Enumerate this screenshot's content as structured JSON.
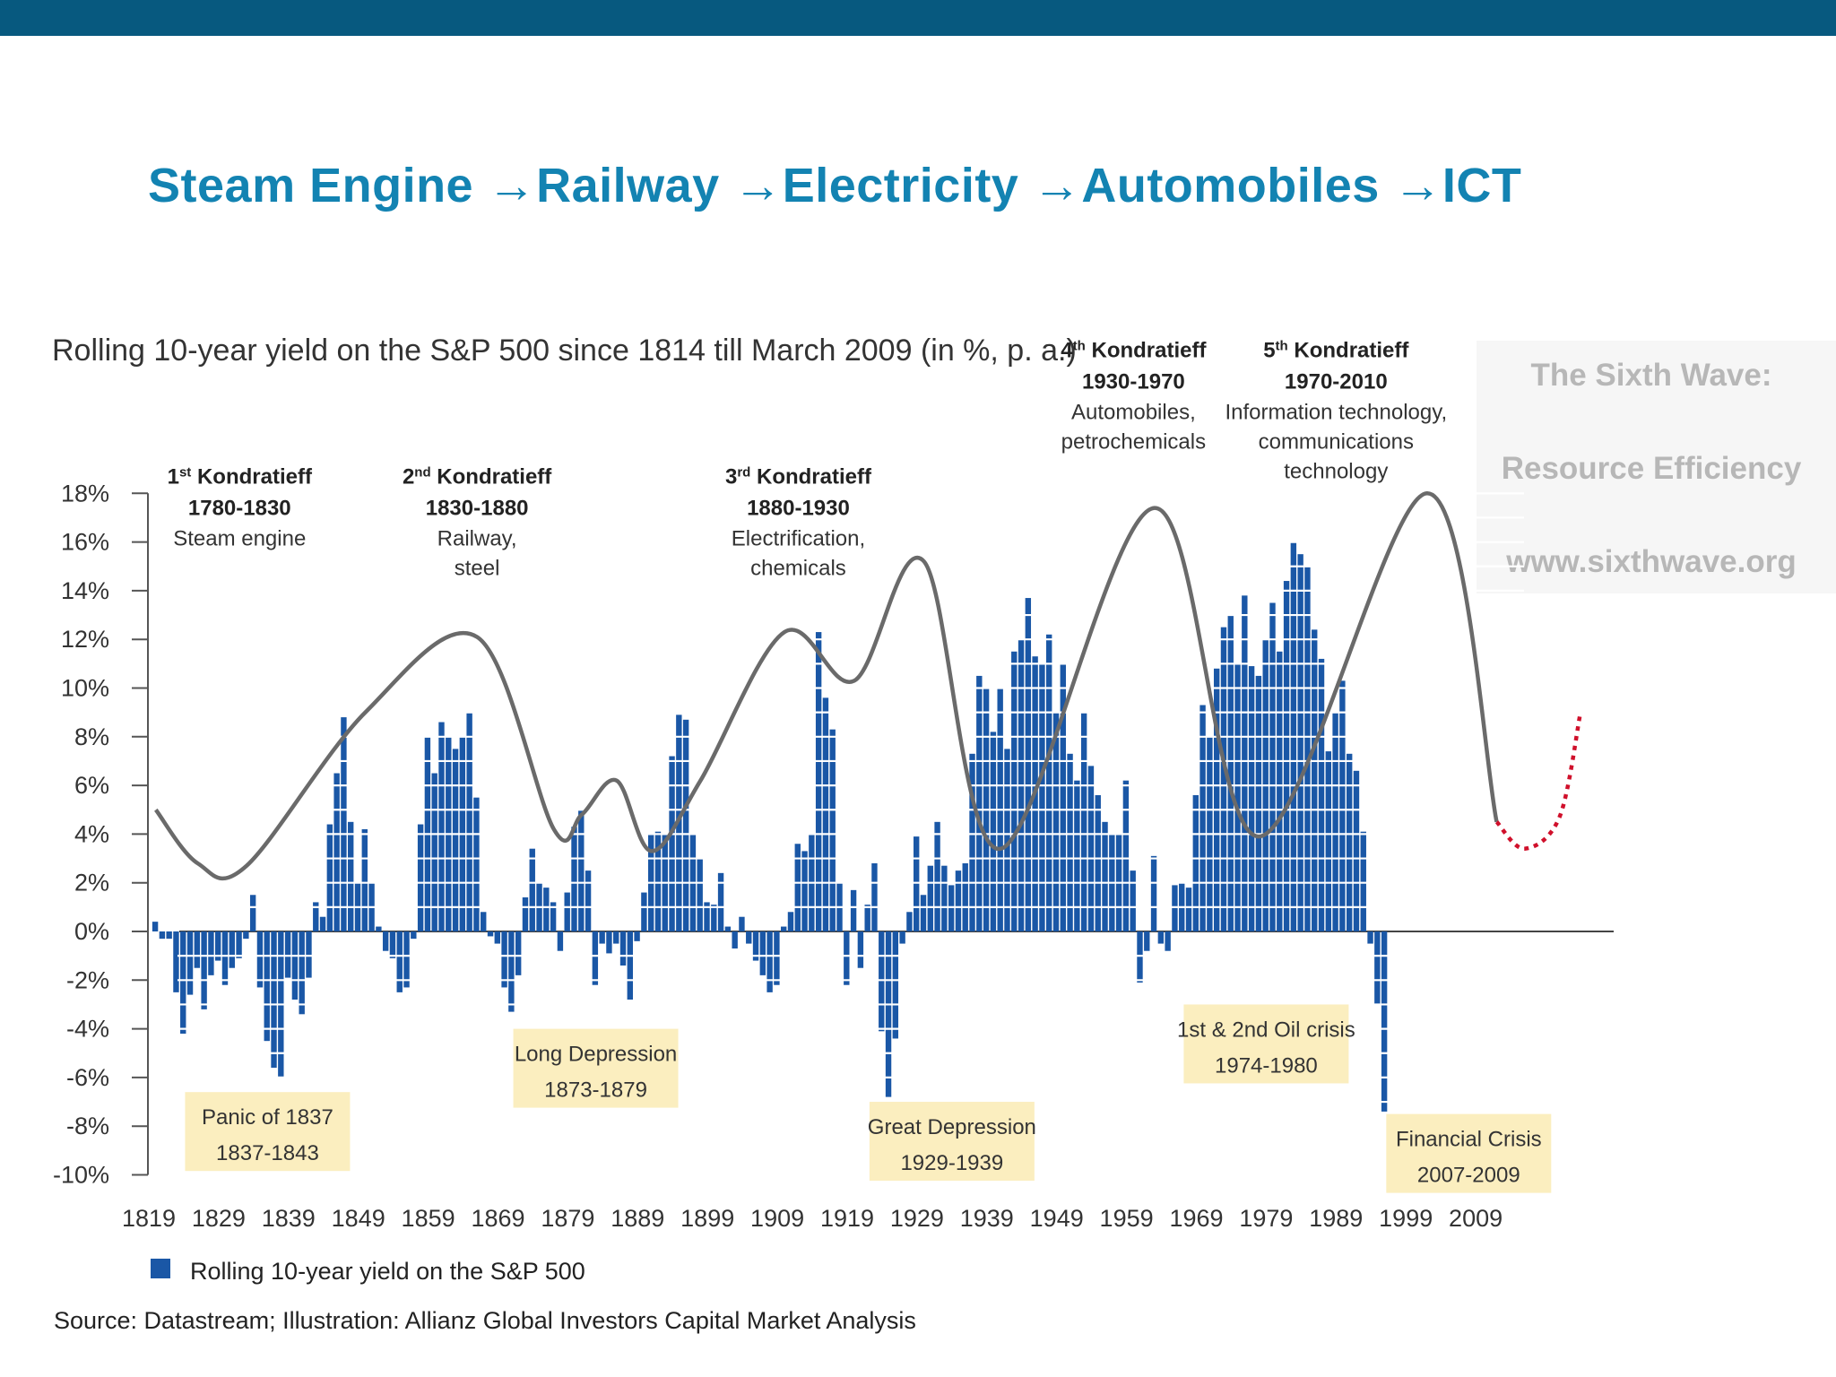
{
  "slide": {
    "title": "Steam Engine →Railway →Electricity →Automobiles →ICT"
  },
  "colors": {
    "top_bar": "#07597f",
    "title": "#1383b2",
    "bars": "#1a57a6",
    "wave": "#6a6a6a",
    "projection": "#d0102b",
    "crisis_box": "#fbeebf"
  },
  "chart_data": {
    "type": "bar",
    "title": "Rolling 10-year yield on the S&P 500 since 1814 till March 2009 (in %, p. a.)",
    "ylim": [
      -10,
      18
    ],
    "y_ticks": [
      "18%",
      "16%",
      "14%",
      "12%",
      "10%",
      "8%",
      "6%",
      "4%",
      "2%",
      "0%",
      "-2%",
      "-4%",
      "-6%",
      "-8%",
      "-10%"
    ],
    "y_tick_values": [
      18,
      16,
      14,
      12,
      10,
      8,
      6,
      4,
      2,
      0,
      -2,
      -4,
      -6,
      -8,
      -10
    ],
    "x_ticks": [
      "1819",
      "1829",
      "1839",
      "1849",
      "1859",
      "1869",
      "1879",
      "1889",
      "1899",
      "1909",
      "1919",
      "1929",
      "1939",
      "1949",
      "1959",
      "1969",
      "1979",
      "1989",
      "1999",
      "2009"
    ],
    "x_range": [
      1814,
      2009
    ],
    "series": [
      {
        "name": "Rolling 10-year yield on the S&P 500",
        "start_year": 1820,
        "values": [
          0.4,
          -0.3,
          -0.3,
          -2.5,
          -4.2,
          -2.6,
          -1.5,
          -3.2,
          -1.8,
          -1.2,
          -2.2,
          -1.5,
          -1.1,
          -0.3,
          1.5,
          -2.3,
          -4.5,
          -5.6,
          -6.0,
          -1.9,
          -2.8,
          -3.4,
          -1.9,
          1.2,
          0.6,
          4.4,
          6.5,
          8.8,
          4.5,
          2.0,
          4.2,
          2.0,
          0.2,
          -0.8,
          -1.1,
          -2.5,
          -2.3,
          -0.3,
          4.4,
          8.0,
          6.5,
          8.6,
          8.0,
          7.5,
          8.0,
          9.0,
          5.5,
          0.8,
          -0.2,
          -0.5,
          -2.3,
          -3.3,
          -1.8,
          1.4,
          3.4,
          2.0,
          1.8,
          1.2,
          -0.8,
          1.6,
          4.3,
          5.0,
          2.5,
          -2.2,
          -0.5,
          -0.9,
          -0.5,
          -1.4,
          -2.8,
          -0.4,
          1.6,
          4.0,
          4.1,
          4.0,
          7.2,
          8.9,
          8.7,
          4.0,
          3.0,
          1.2,
          1.1,
          2.4,
          0.2,
          -0.7,
          0.6,
          -0.5,
          -1.2,
          -1.8,
          -2.5,
          -2.2,
          0.2,
          0.8,
          3.6,
          3.3,
          4.0,
          12.3,
          9.6,
          8.3,
          2.0,
          -2.2,
          1.7,
          -1.5,
          1.1,
          2.8,
          -4.1,
          -6.8,
          -4.4,
          -0.5,
          0.8,
          3.9,
          1.5,
          2.7,
          4.5,
          2.7,
          1.9,
          2.5,
          2.8,
          7.3,
          10.5,
          10.0,
          8.2,
          10.0,
          7.5,
          11.5,
          12.0,
          13.7,
          11.3,
          11.0,
          12.2,
          9.0,
          11.0,
          7.3,
          6.2,
          9.0,
          6.8,
          5.6,
          4.5,
          4.0,
          4.0,
          6.2,
          2.5,
          -2.1,
          -0.8,
          3.1,
          -0.5,
          -0.8,
          1.9,
          2.0,
          1.8,
          5.6,
          9.3,
          8.0,
          10.8,
          12.5,
          13.0,
          11.0,
          13.8,
          10.9,
          10.5,
          12.0,
          13.5,
          11.5,
          14.4,
          16.0,
          15.5,
          15.0,
          12.4,
          11.2,
          7.4,
          9.0,
          10.3,
          7.3,
          6.6,
          4.1,
          -0.5,
          -3.0,
          -7.4
        ]
      }
    ],
    "wave_curve": [
      {
        "year": 1820,
        "value": 5.0
      },
      {
        "year": 1826,
        "value": 2.8
      },
      {
        "year": 1833,
        "value": 2.7
      },
      {
        "year": 1850,
        "value": 9.0
      },
      {
        "year": 1866,
        "value": 12.1
      },
      {
        "year": 1877,
        "value": 4.2
      },
      {
        "year": 1881,
        "value": 4.8
      },
      {
        "year": 1886,
        "value": 6.2
      },
      {
        "year": 1891,
        "value": 3.3
      },
      {
        "year": 1898,
        "value": 6.2
      },
      {
        "year": 1910,
        "value": 12.3
      },
      {
        "year": 1920,
        "value": 10.3
      },
      {
        "year": 1930,
        "value": 15.2
      },
      {
        "year": 1941,
        "value": 3.4
      },
      {
        "year": 1963,
        "value": 17.4
      },
      {
        "year": 1978,
        "value": 3.9
      },
      {
        "year": 2002,
        "value": 18.0
      },
      {
        "year": 2012,
        "value": 4.5
      }
    ],
    "projection_curve": [
      {
        "year": 2012,
        "value": 4.5
      },
      {
        "year": 2016,
        "value": 3.4
      },
      {
        "year": 2021,
        "value": 4.7
      },
      {
        "year": 2024,
        "value": 9.0
      }
    ],
    "waves": [
      {
        "name": "1st Kondratieff",
        "ordinal": "1",
        "suffix": "st",
        "base": " Kondratieff",
        "period": "1780-1830",
        "theme": [
          "Steam engine"
        ],
        "center_year": 1832,
        "top_value": 18.4
      },
      {
        "name": "2nd Kondratieff",
        "ordinal": "2",
        "suffix": "nd",
        "base": " Kondratieff",
        "period": "1830-1880",
        "theme": [
          "Railway,",
          "steel"
        ],
        "center_year": 1866,
        "top_value": 18.4
      },
      {
        "name": "3rd Kondratieff",
        "ordinal": "3",
        "suffix": "rd",
        "base": " Kondratieff",
        "period": "1880-1930",
        "theme": [
          "Electrification,",
          "chemicals"
        ],
        "center_year": 1912,
        "top_value": 18.4
      },
      {
        "name": "4th Kondratieff",
        "ordinal": "4",
        "suffix": "th",
        "base": " Kondratieff",
        "period": "1930-1970",
        "theme": [
          "Automobiles,",
          "petrochemicals"
        ],
        "center_year": 1960,
        "top_value": 23.6
      },
      {
        "name": "5th Kondratieff",
        "ordinal": "5",
        "suffix": "th",
        "base": " Kondratieff",
        "period": "1970-2010",
        "theme": [
          "Information technology,",
          "communications",
          "technology"
        ],
        "center_year": 1989,
        "top_value": 23.6
      }
    ],
    "crises": [
      {
        "name": "Panic of 1837",
        "period": "1837-1843",
        "center_year": 1836,
        "top_value": -6.6
      },
      {
        "name": "Long Depression",
        "period": "1873-1879",
        "center_year": 1883,
        "top_value": -4.0
      },
      {
        "name": "Great Depression",
        "period": "1929-1939",
        "center_year": 1934,
        "top_value": -7.0
      },
      {
        "name": "1st & 2nd Oil crisis",
        "period": "1974-1980",
        "center_year": 1979,
        "top_value": -3.0
      },
      {
        "name": "Financial Crisis",
        "period": "2007-2009",
        "center_year": 2008,
        "top_value": -7.5
      }
    ],
    "legend": "Rolling 10-year yield on the S&P 500",
    "source": "Source: Datastream; Illustration: Allianz Global Investors Capital Market Analysis",
    "sixth_wave": {
      "title": "The Sixth Wave:",
      "subtitle": "Resource Efficiency",
      "url": "www.sixthwave.org"
    }
  }
}
